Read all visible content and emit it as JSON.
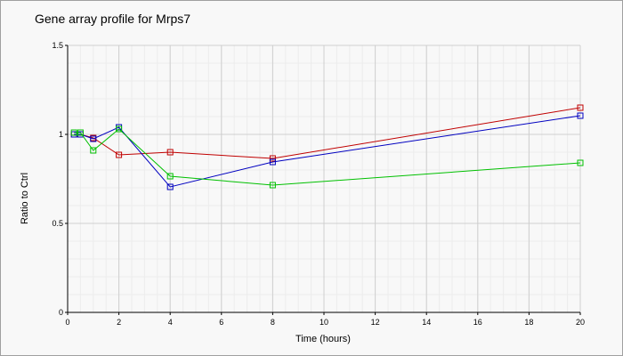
{
  "chart_data": {
    "type": "line",
    "title": "Gene array profile for Mrps7",
    "xlabel": "Time (hours)",
    "ylabel": "Ratio to Ctrl",
    "xlim": [
      0,
      20
    ],
    "ylim": [
      0,
      1.5
    ],
    "x_ticks": [
      "0",
      "2",
      "4",
      "6",
      "8",
      "10",
      "12",
      "14",
      "16",
      "18",
      "20"
    ],
    "y_ticks": [
      "0",
      "0.5",
      "1",
      "1.5"
    ],
    "grid": true,
    "marker": "square",
    "series": [
      {
        "color": "#c00000",
        "x": [
          0.25,
          0.5,
          1,
          2,
          4,
          8,
          20
        ],
        "y": [
          1.0,
          1.0,
          0.98,
          0.885,
          0.9,
          0.865,
          1.15
        ]
      },
      {
        "color": "#0000c0",
        "x": [
          0.25,
          0.5,
          1,
          2,
          4,
          8,
          20
        ],
        "y": [
          1.0,
          1.0,
          0.975,
          1.04,
          0.705,
          0.845,
          1.105
        ]
      },
      {
        "color": "#00c000",
        "x": [
          0.25,
          0.5,
          1,
          2,
          4,
          8,
          20
        ],
        "y": [
          1.01,
          1.01,
          0.91,
          1.03,
          0.765,
          0.715,
          0.84
        ]
      }
    ]
  }
}
